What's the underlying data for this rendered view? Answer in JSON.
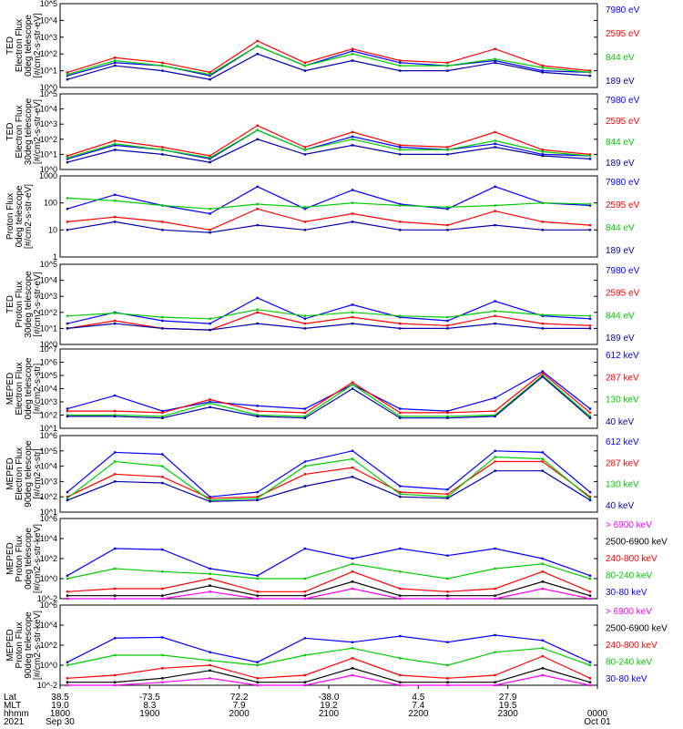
{
  "chart_data": [
    {
      "type": "line",
      "ylabel": [
        "TED",
        "Electron Flux",
        "0deg telescope",
        "[#/cm2-s-str-eV]"
      ],
      "log_y": true,
      "ylim": [
        1,
        100000
      ],
      "yticks": [
        "10^0",
        "10^1",
        "10^2",
        "10^3",
        "10^4",
        "10^5"
      ],
      "series": [
        {
          "name": "7980 eV",
          "color": "#0000ff",
          "values": [
            5,
            30,
            20,
            5,
            300,
            20,
            150,
            30,
            20,
            40,
            10,
            8
          ]
        },
        {
          "name": "2595 eV",
          "color": "#ff0000",
          "values": [
            8,
            60,
            30,
            8,
            600,
            30,
            200,
            40,
            30,
            200,
            20,
            10
          ]
        },
        {
          "name": "844 eV",
          "color": "#00cc00",
          "values": [
            6,
            40,
            20,
            6,
            300,
            20,
            100,
            20,
            20,
            50,
            15,
            8
          ]
        },
        {
          "name": "189 eV",
          "color": "#0000aa",
          "values": [
            3,
            20,
            10,
            3,
            100,
            10,
            40,
            10,
            10,
            30,
            8,
            5
          ]
        }
      ]
    },
    {
      "type": "line",
      "ylabel": [
        "TED",
        "Electron Flux",
        "30deg telescope",
        "[#/cm2-s-str-eV]"
      ],
      "log_y": true,
      "ylim": [
        1,
        100000
      ],
      "yticks": [
        "10^0",
        "10^1",
        "10^2",
        "10^3",
        "10^4",
        "10^5"
      ],
      "series": [
        {
          "name": "7980 eV",
          "color": "#0000ff",
          "values": [
            5,
            40,
            20,
            5,
            400,
            20,
            150,
            30,
            20,
            50,
            10,
            8
          ]
        },
        {
          "name": "2595 eV",
          "color": "#ff0000",
          "values": [
            8,
            80,
            30,
            8,
            800,
            30,
            300,
            40,
            30,
            300,
            20,
            10
          ]
        },
        {
          "name": "844 eV",
          "color": "#00cc00",
          "values": [
            6,
            50,
            20,
            6,
            400,
            20,
            100,
            20,
            20,
            80,
            15,
            8
          ]
        },
        {
          "name": "189 eV",
          "color": "#0000aa",
          "values": [
            3,
            20,
            10,
            3,
            100,
            10,
            40,
            10,
            10,
            30,
            8,
            5
          ]
        }
      ]
    },
    {
      "type": "line",
      "ylabel": [
        "Proton Flux",
        "0deg telescope",
        "[#/cm2-s-str-eV]"
      ],
      "log_y": true,
      "ylim": [
        1,
        1000
      ],
      "yticks": [
        "1",
        "10",
        "100",
        "1000"
      ],
      "series": [
        {
          "name": "7980 eV",
          "color": "#0000ff",
          "values": [
            60,
            200,
            80,
            40,
            400,
            60,
            300,
            90,
            60,
            400,
            100,
            80
          ]
        },
        {
          "name": "2595 eV",
          "color": "#ff0000",
          "values": [
            20,
            30,
            20,
            10,
            60,
            20,
            40,
            20,
            15,
            50,
            20,
            15
          ]
        },
        {
          "name": "844 eV",
          "color": "#00cc00",
          "values": [
            150,
            120,
            80,
            60,
            90,
            70,
            100,
            80,
            70,
            80,
            100,
            90
          ]
        },
        {
          "name": "189 eV",
          "color": "#0000aa",
          "values": [
            10,
            20,
            10,
            8,
            15,
            10,
            20,
            10,
            10,
            15,
            10,
            10
          ]
        }
      ]
    },
    {
      "type": "line",
      "ylabel": [
        "TED",
        "Proton Flux",
        "30deg telescope",
        "[#/cm2-s-str-eV]"
      ],
      "log_y": true,
      "ylim": [
        1,
        100000
      ],
      "yticks": [
        "10^0",
        "10^1",
        "10^2",
        "10^3",
        "10^4",
        "10^5"
      ],
      "series": [
        {
          "name": "7980 eV",
          "color": "#0000ff",
          "values": [
            20,
            100,
            30,
            20,
            800,
            40,
            300,
            50,
            30,
            500,
            60,
            40
          ]
        },
        {
          "name": "2595 eV",
          "color": "#ff0000",
          "values": [
            10,
            30,
            10,
            8,
            100,
            20,
            50,
            20,
            15,
            60,
            20,
            15
          ]
        },
        {
          "name": "844 eV",
          "color": "#00cc00",
          "values": [
            60,
            90,
            50,
            40,
            150,
            60,
            100,
            60,
            50,
            120,
            70,
            60
          ]
        },
        {
          "name": "189 eV",
          "color": "#0000aa",
          "values": [
            10,
            20,
            10,
            8,
            20,
            10,
            20,
            10,
            10,
            20,
            10,
            10
          ]
        }
      ]
    },
    {
      "type": "line",
      "ylabel": [
        "MEPED",
        "Electron Flux",
        "0deg telescope",
        "[#/cm2-s-str]"
      ],
      "log_y": true,
      "ylim": [
        10,
        10000000
      ],
      "yticks": [
        "10^1",
        "10^2",
        "10^3",
        "10^4",
        "10^5",
        "10^6",
        "10^7"
      ],
      "series": [
        {
          "name": "612 keV",
          "color": "#0000ff",
          "values": [
            300,
            3000,
            200,
            1000,
            500,
            300,
            20000,
            300,
            200,
            2000,
            200000,
            300
          ]
        },
        {
          "name": "287 keV",
          "color": "#ff0000",
          "values": [
            200,
            200,
            150,
            1500,
            200,
            150,
            30000,
            150,
            150,
            200,
            150000,
            150
          ]
        },
        {
          "name": "130 keV",
          "color": "#00cc00",
          "values": [
            100,
            100,
            80,
            800,
            100,
            80,
            20000,
            80,
            80,
            100,
            100000,
            80
          ]
        },
        {
          "name": "40 keV",
          "color": "#0000aa",
          "values": [
            80,
            80,
            60,
            400,
            80,
            60,
            10000,
            60,
            60,
            80,
            80000,
            60
          ]
        }
      ]
    },
    {
      "type": "line",
      "ylabel": [
        "MEPED",
        "Electron Flux",
        "90deg telescope",
        "[#/cm2-s-str]"
      ],
      "log_y": true,
      "ylim": [
        10,
        1000000
      ],
      "yticks": [
        "10^1",
        "10^2",
        "10^3",
        "10^4",
        "10^5",
        "10^6"
      ],
      "series": [
        {
          "name": "612 keV",
          "color": "#0000ff",
          "values": [
            200,
            80000,
            60000,
            100,
            200,
            20000,
            100000,
            500,
            300,
            100000,
            80000,
            200
          ]
        },
        {
          "name": "287 keV",
          "color": "#ff0000",
          "values": [
            100,
            3000,
            2000,
            80,
            100,
            3000,
            8000,
            200,
            150,
            20000,
            20000,
            100
          ]
        },
        {
          "name": "130 keV",
          "color": "#00cc00",
          "values": [
            80,
            20000,
            10000,
            60,
            80,
            10000,
            30000,
            150,
            100,
            40000,
            30000,
            80
          ]
        },
        {
          "name": "40 keV",
          "color": "#0000aa",
          "values": [
            60,
            1000,
            800,
            50,
            60,
            500,
            2000,
            100,
            80,
            5000,
            5000,
            60
          ]
        }
      ]
    },
    {
      "type": "line",
      "ylabel": [
        "MEPED",
        "Proton Flux",
        "0deg telescope",
        "[#/cm2-s-str-keV]"
      ],
      "log_y": true,
      "ylim": [
        0.01,
        1000000
      ],
      "yticks": [
        "10^-2",
        "10^0",
        "10^2",
        "10^4",
        "10^6"
      ],
      "series": [
        {
          "name": "> 6900 keV",
          "color": "#ff00ff",
          "values": [
            0.01,
            0.01,
            0.01,
            0.05,
            0.01,
            0.01,
            0.1,
            0.01,
            0.01,
            0.01,
            0.1,
            0.01
          ]
        },
        {
          "name": "2500-6900 keV",
          "color": "#000000",
          "values": [
            0.02,
            0.02,
            0.02,
            0.2,
            0.02,
            0.02,
            0.5,
            0.02,
            0.02,
            0.02,
            0.5,
            0.02
          ]
        },
        {
          "name": "240-800 keV",
          "color": "#ff0000",
          "values": [
            0.05,
            0.1,
            0.1,
            1,
            0.05,
            0.05,
            5,
            0.1,
            0.05,
            0.1,
            5,
            0.05
          ]
        },
        {
          "name": "80-240 keV",
          "color": "#00cc00",
          "values": [
            1,
            10,
            5,
            3,
            1,
            1,
            30,
            5,
            1,
            10,
            30,
            1
          ]
        },
        {
          "name": "30-80 keV",
          "color": "#0000ff",
          "values": [
            2,
            1000,
            800,
            10,
            2,
            1000,
            100,
            1000,
            200,
            1000,
            100,
            2
          ]
        }
      ]
    },
    {
      "type": "line",
      "ylabel": [
        "MEPED",
        "Proton Flux",
        "90deg telescope",
        "[#/cm2-s-str-keV]"
      ],
      "log_y": true,
      "ylim": [
        0.01,
        1000000
      ],
      "yticks": [
        "10^-2",
        "10^0",
        "10^2",
        "10^4",
        "10^6"
      ],
      "series": [
        {
          "name": "> 6900 keV",
          "color": "#ff00ff",
          "values": [
            0.01,
            0.01,
            0.02,
            0.05,
            0.01,
            0.01,
            0.1,
            0.01,
            0.01,
            0.01,
            0.1,
            0.01
          ]
        },
        {
          "name": "2500-6900 keV",
          "color": "#000000",
          "values": [
            0.02,
            0.02,
            0.05,
            0.3,
            0.02,
            0.02,
            0.5,
            0.02,
            0.02,
            0.02,
            0.5,
            0.02
          ]
        },
        {
          "name": "240-800 keV",
          "color": "#ff0000",
          "values": [
            0.05,
            0.1,
            0.5,
            1,
            0.05,
            0.1,
            5,
            0.1,
            0.05,
            0.1,
            8,
            0.05
          ]
        },
        {
          "name": "80-240 keV",
          "color": "#00cc00",
          "values": [
            1,
            10,
            10,
            3,
            1,
            10,
            50,
            5,
            1,
            20,
            50,
            1
          ]
        },
        {
          "name": "30-80 keV",
          "color": "#0000ff",
          "values": [
            2,
            500,
            600,
            20,
            2,
            500,
            200,
            800,
            200,
            1000,
            300,
            2
          ]
        }
      ]
    }
  ],
  "footer": {
    "row_labels": [
      "Lat",
      "MLT",
      "hhmm",
      "2021"
    ],
    "columns": [
      {
        "lat": "38.5",
        "mlt": "19.0",
        "hhmm": "1800",
        "date": "Sep 30"
      },
      {
        "lat": "-73.5",
        "mlt": "8.3",
        "hhmm": "1900",
        "date": ""
      },
      {
        "lat": "72.2",
        "mlt": "7.9",
        "hhmm": "2000",
        "date": ""
      },
      {
        "lat": "-38.0",
        "mlt": "19.2",
        "hhmm": "2100",
        "date": ""
      },
      {
        "lat": "4.5",
        "mlt": "7.4",
        "hhmm": "2200",
        "date": ""
      },
      {
        "lat": "27.9",
        "mlt": "19.5",
        "hhmm": "2300",
        "date": ""
      },
      {
        "lat": "",
        "mlt": "",
        "hhmm": "0000",
        "date": "Oct 01"
      }
    ]
  }
}
